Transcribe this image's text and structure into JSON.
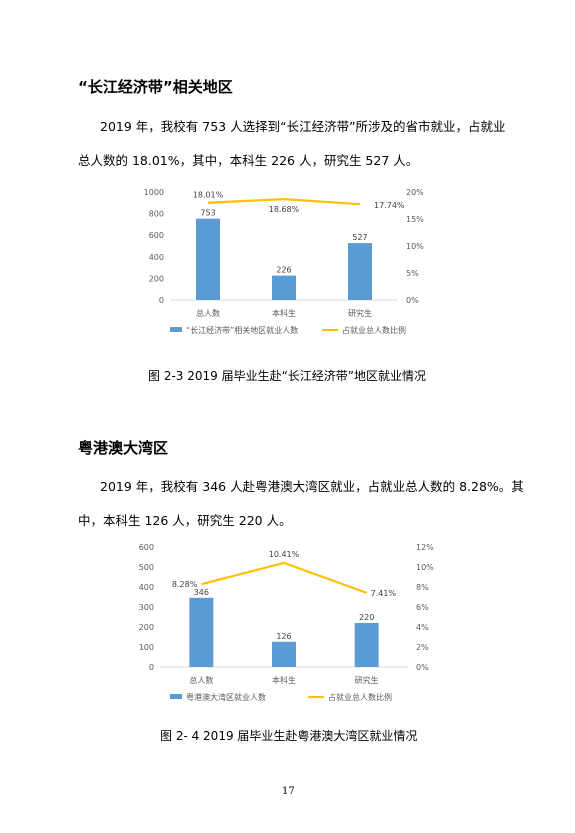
{
  "section1": {
    "heading": "“长江经济带”相关地区",
    "para_line1": "2019 年，我校有 753 人选择到“长江经济带”所涉及的省市就业，占就业",
    "para_line2": "总人数的 18.01%，其中，本科生 226 人，研究生 527 人。",
    "caption": "图 2-3 2019 届毕业生赴“长江经济带”地区就业情况"
  },
  "section2": {
    "heading": "粤港澳大湾区",
    "para_line1": "2019 年，我校有 346 人赴粤港澳大湾区就业，占就业总人数的 8.28%。其",
    "para_line2": "中，本科生 126 人，研究生 220 人。",
    "caption": "图 2- 4 2019 届毕业生赴粤港澳大湾区就业情况"
  },
  "page_number": "17",
  "colors": {
    "bar": "#5b9bd5",
    "line": "#ffc000",
    "axis": "#d9d9d9",
    "text": "#595959"
  },
  "chart_data": [
    {
      "type": "bar",
      "categories": [
        "总人数",
        "本科生",
        "研究生"
      ],
      "series": [
        {
          "name": "“长江经济带”相关地区就业人数",
          "type": "bar",
          "axis": "left",
          "values": [
            753,
            226,
            527
          ],
          "labels": [
            "753",
            "226",
            "527"
          ]
        },
        {
          "name": "占就业总人数比例",
          "type": "line",
          "axis": "right",
          "values": [
            18.01,
            18.68,
            17.74
          ],
          "labels": [
            "18.01%",
            "18.68%",
            "17.74%"
          ]
        }
      ],
      "y_left": {
        "min": 0,
        "max": 1000,
        "ticks": [
          "0",
          "200",
          "400",
          "600",
          "800",
          "1000"
        ]
      },
      "y_right": {
        "min": 0,
        "max": 20,
        "ticks": [
          "0%",
          "5%",
          "10%",
          "15%",
          "20%"
        ]
      },
      "legend_position": "bottom",
      "grid": false
    },
    {
      "type": "bar",
      "categories": [
        "总人数",
        "本科生",
        "研究生"
      ],
      "series": [
        {
          "name": "粤港澳大湾区就业人数",
          "type": "bar",
          "axis": "left",
          "values": [
            346,
            126,
            220
          ],
          "labels": [
            "346",
            "126",
            "220"
          ]
        },
        {
          "name": "占就业总人数比例",
          "type": "line",
          "axis": "right",
          "values": [
            8.28,
            10.41,
            7.41
          ],
          "labels": [
            "8.28%",
            "10.41%",
            "7.41%"
          ]
        }
      ],
      "y_left": {
        "min": 0,
        "max": 600,
        "ticks": [
          "0",
          "100",
          "200",
          "300",
          "400",
          "500",
          "600"
        ]
      },
      "y_right": {
        "min": 0,
        "max": 12,
        "ticks": [
          "0%",
          "2%",
          "4%",
          "6%",
          "8%",
          "10%",
          "12%"
        ]
      },
      "legend_position": "bottom",
      "grid": false
    }
  ]
}
